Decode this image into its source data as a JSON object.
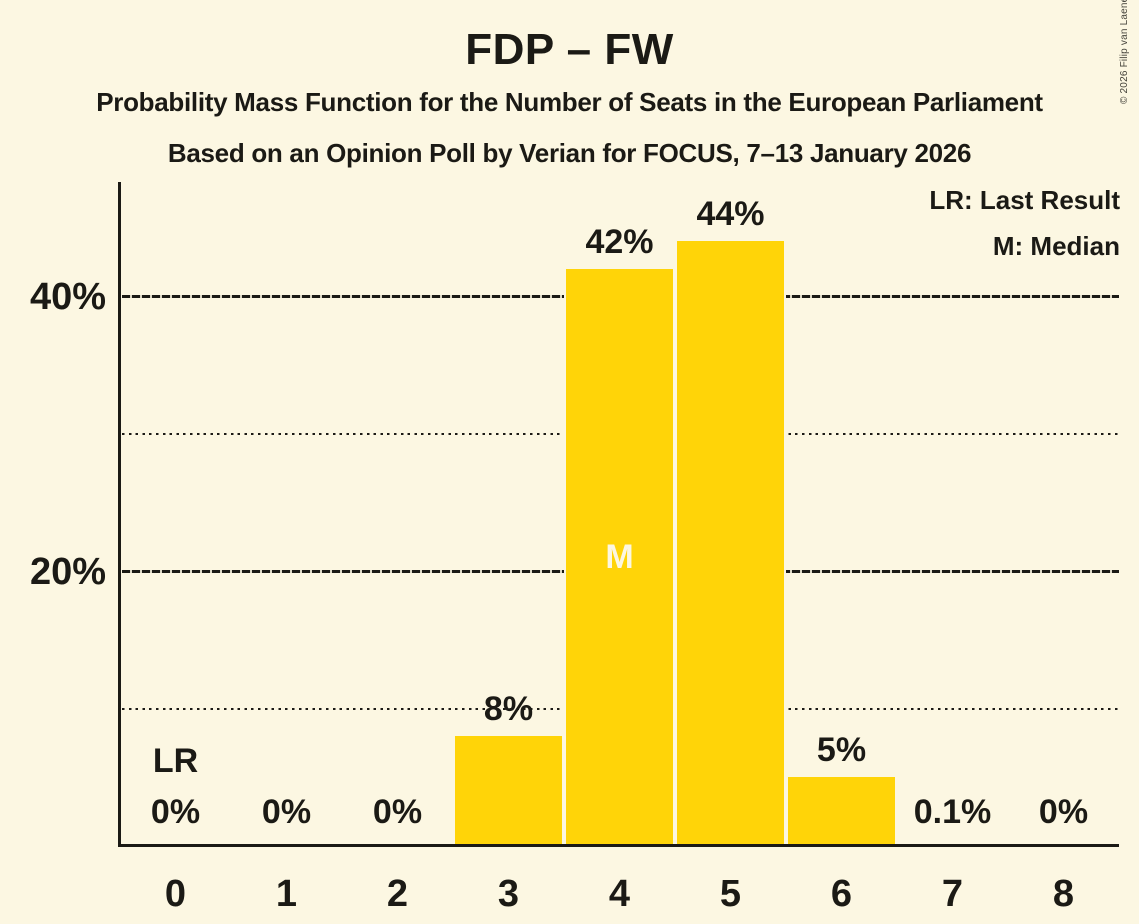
{
  "title": "FDP – FW",
  "subtitle1": "Probability Mass Function for the Number of Seats in the European Parliament",
  "subtitle2": "Based on an Opinion Poll by Verian for FOCUS, 7–13 January 2026",
  "copyright": "© 2026 Filip van Laenen",
  "legend": {
    "last_result": "LR: Last Result",
    "median": "M: Median"
  },
  "colors": {
    "background": "#FCF7E2",
    "bar": "#FFD408",
    "text": "#1B1A15",
    "median_text": "#FCF7E2"
  },
  "chart_data": {
    "type": "bar",
    "title": "FDP – FW",
    "categories": [
      "0",
      "1",
      "2",
      "3",
      "4",
      "5",
      "6",
      "7",
      "8"
    ],
    "values": [
      0,
      0,
      0,
      8,
      42,
      44,
      5,
      0.1,
      0
    ],
    "value_labels": [
      "0%",
      "0%",
      "0%",
      "8%",
      "42%",
      "44%",
      "5%",
      "0.1%",
      "0%"
    ],
    "y_ticks": [
      {
        "pct": 20,
        "label": "20%"
      },
      {
        "pct": 40,
        "label": "40%"
      }
    ],
    "gridlines": {
      "solid_pct": [
        20,
        40
      ],
      "dotted_pct": [
        10,
        30
      ]
    },
    "ylim": [
      0,
      48
    ],
    "legend_position": "top-right",
    "last_result": {
      "index": 0,
      "label": "LR"
    },
    "median": {
      "index": 4,
      "label": "M"
    }
  }
}
